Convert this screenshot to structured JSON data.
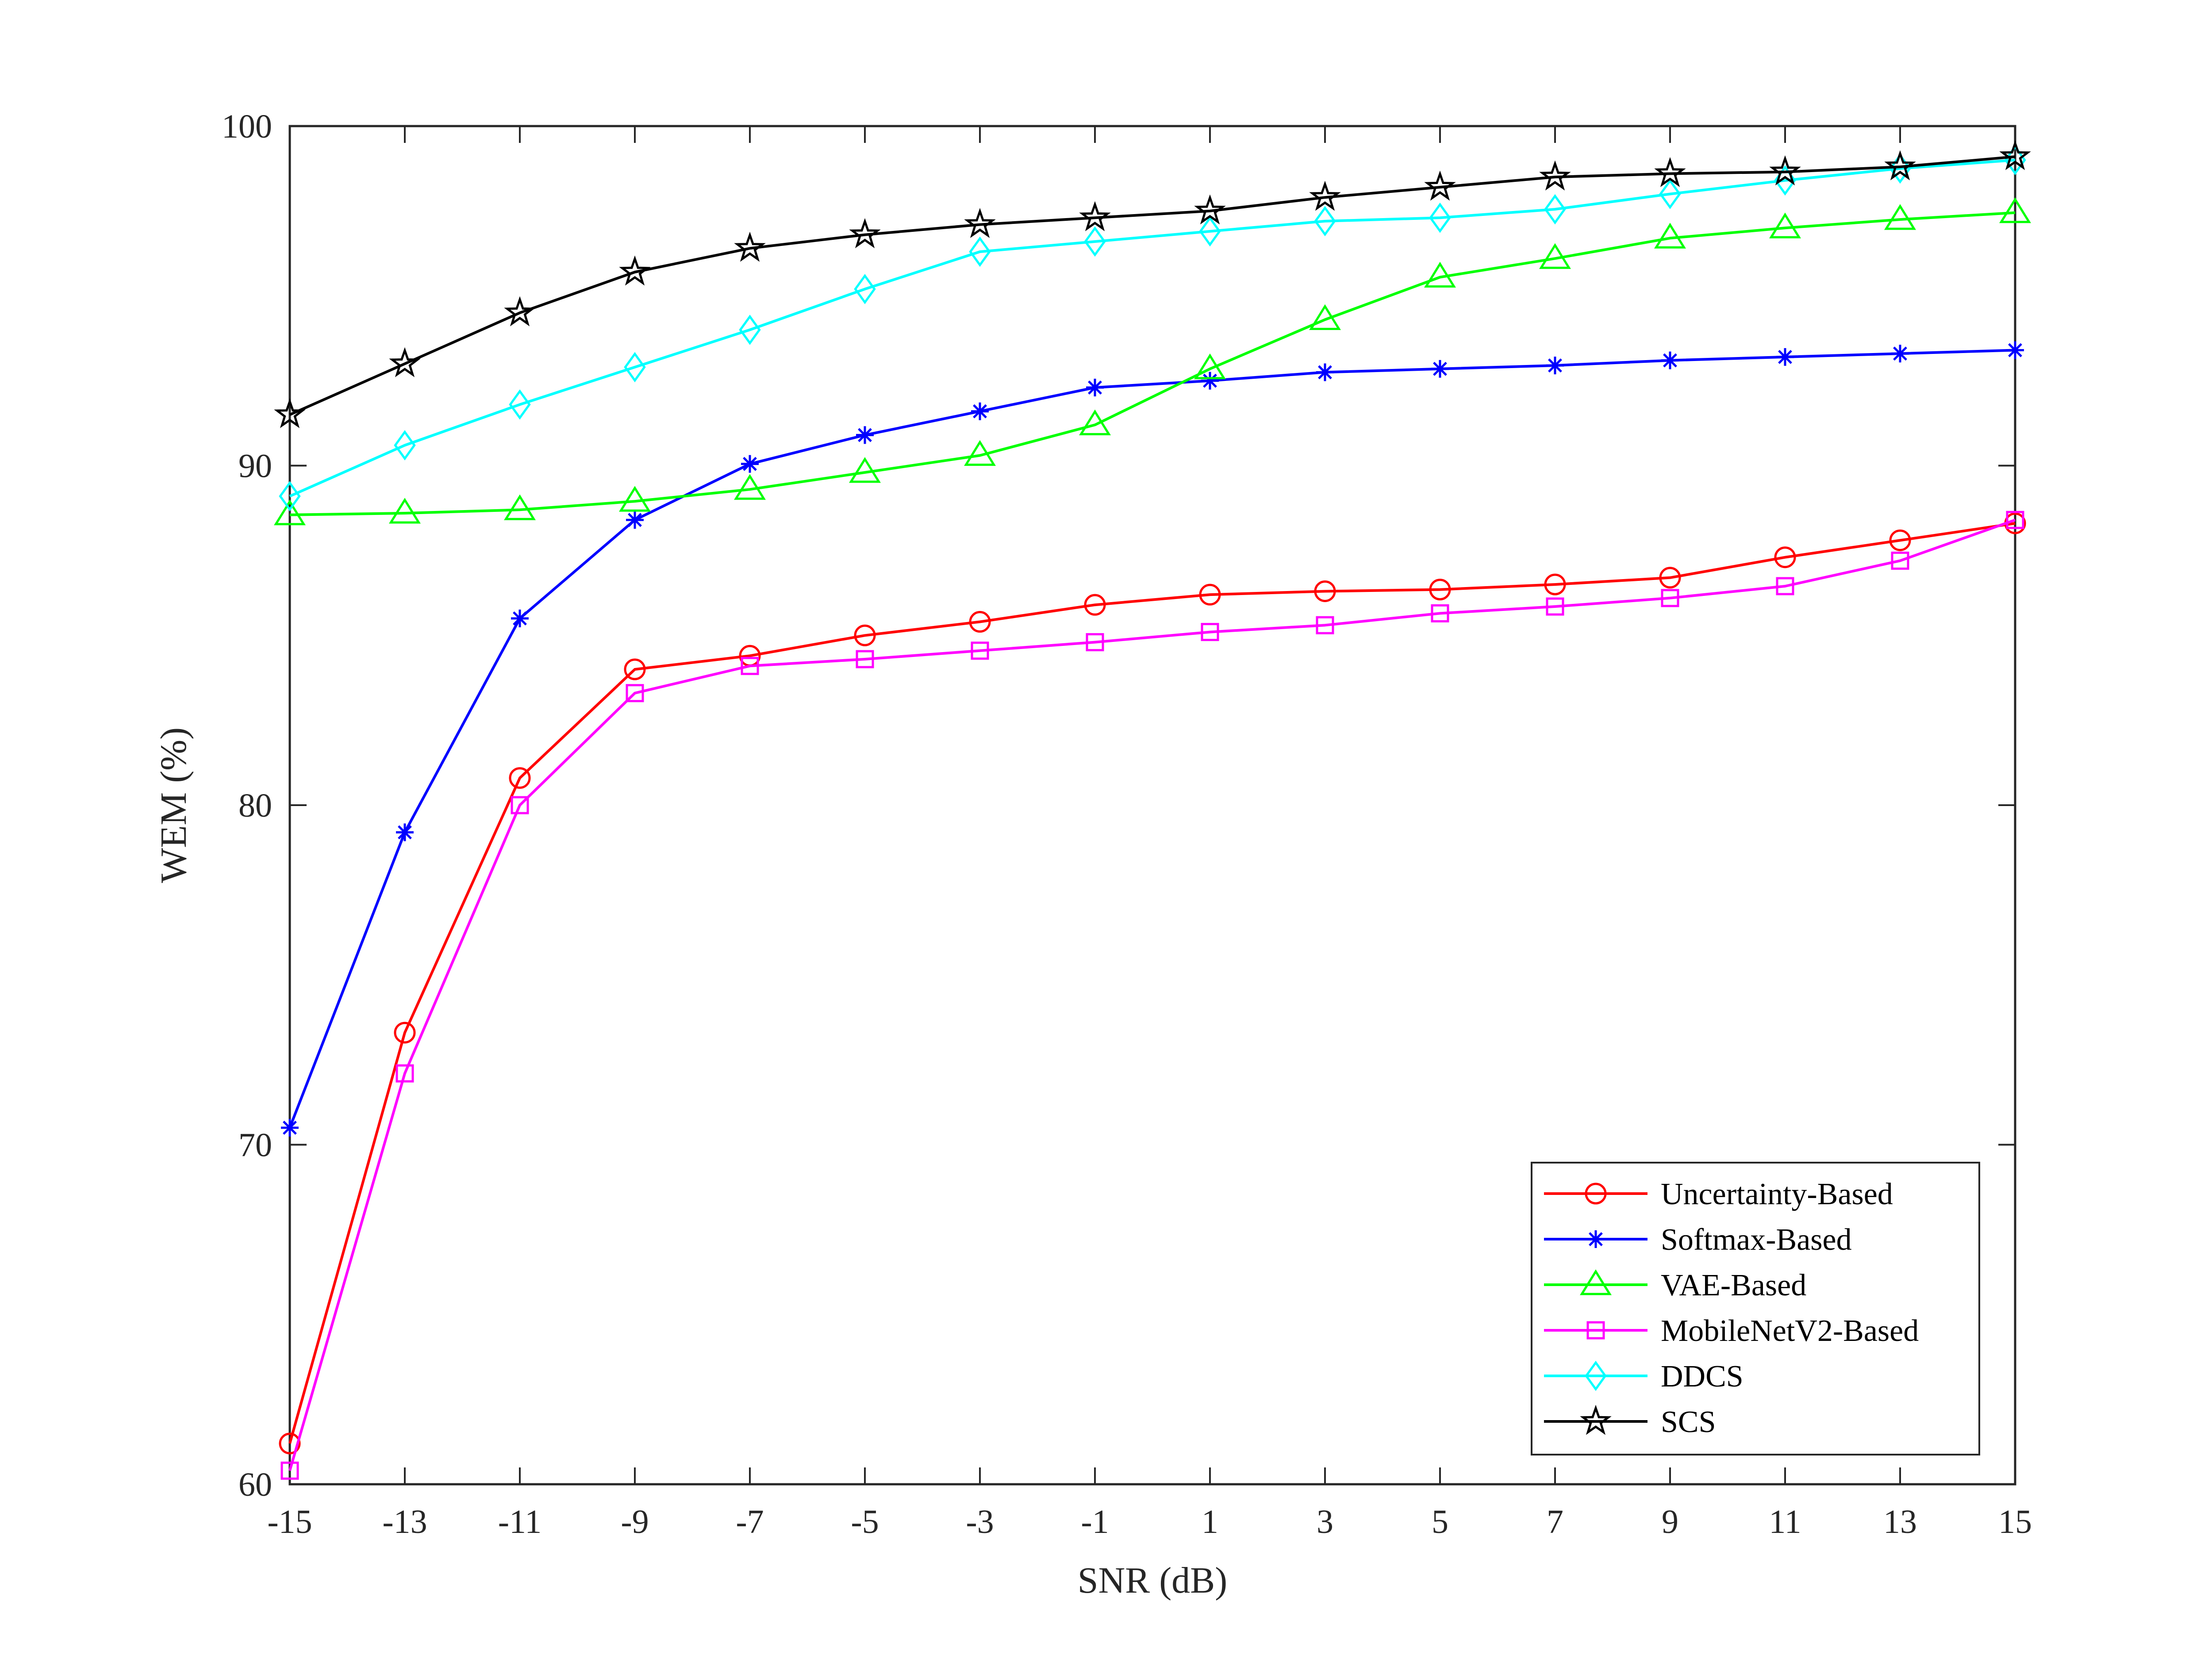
{
  "chart_data": {
    "type": "line",
    "title": "",
    "xlabel": "SNR (dB)",
    "ylabel": "WEM (%)",
    "xlim": [
      -15,
      15
    ],
    "ylim": [
      60,
      100
    ],
    "x_ticks": [
      "-15",
      "-13",
      "-11",
      "-9",
      "-7",
      "-5",
      "-3",
      "-1",
      "1",
      "3",
      "5",
      "7",
      "9",
      "11",
      "13",
      "15"
    ],
    "y_ticks": [
      "60",
      "70",
      "80",
      "90",
      "100"
    ],
    "grid": false,
    "legend_position": "bottom-right",
    "x": [
      -15,
      -13,
      -11,
      -9,
      -7,
      -5,
      -3,
      -1,
      1,
      3,
      5,
      7,
      9,
      11,
      13,
      15
    ],
    "series": [
      {
        "name": "Uncertainty-Based",
        "color": "#ff0000",
        "marker": "circle",
        "values": [
          61.2,
          73.3,
          80.8,
          84.0,
          84.4,
          85.0,
          85.4,
          85.9,
          86.2,
          86.3,
          86.35,
          86.5,
          86.7,
          87.3,
          87.8,
          88.3
        ]
      },
      {
        "name": "Softmax-Based",
        "color": "#0000ff",
        "marker": "asterisk",
        "values": [
          70.5,
          79.2,
          85.5,
          88.4,
          90.05,
          90.9,
          91.6,
          92.3,
          92.5,
          92.75,
          92.85,
          92.95,
          93.1,
          93.2,
          93.3,
          93.4
        ]
      },
      {
        "name": "VAE-Based",
        "color": "#00ff00",
        "marker": "triangle",
        "values": [
          88.55,
          88.6,
          88.7,
          88.95,
          89.3,
          89.8,
          90.3,
          91.2,
          92.85,
          94.3,
          95.55,
          96.1,
          96.7,
          97.0,
          97.25,
          97.45
        ]
      },
      {
        "name": "MobileNetV2-Based",
        "color": "#ff00ff",
        "marker": "square",
        "values": [
          60.4,
          72.1,
          80.0,
          83.3,
          84.1,
          84.3,
          84.55,
          84.8,
          85.1,
          85.3,
          85.65,
          85.85,
          86.1,
          86.45,
          87.2,
          88.4
        ]
      },
      {
        "name": "DDCS",
        "color": "#00ffff",
        "marker": "diamond",
        "values": [
          89.1,
          90.6,
          91.8,
          92.9,
          94.0,
          95.2,
          96.3,
          96.6,
          96.9,
          97.2,
          97.3,
          97.55,
          98.0,
          98.4,
          98.75,
          99.0
        ]
      },
      {
        "name": "SCS",
        "color": "#000000",
        "marker": "star",
        "values": [
          91.5,
          93.0,
          94.5,
          95.7,
          96.4,
          96.8,
          97.1,
          97.3,
          97.5,
          97.9,
          98.2,
          98.5,
          98.6,
          98.65,
          98.8,
          99.1
        ]
      }
    ]
  }
}
